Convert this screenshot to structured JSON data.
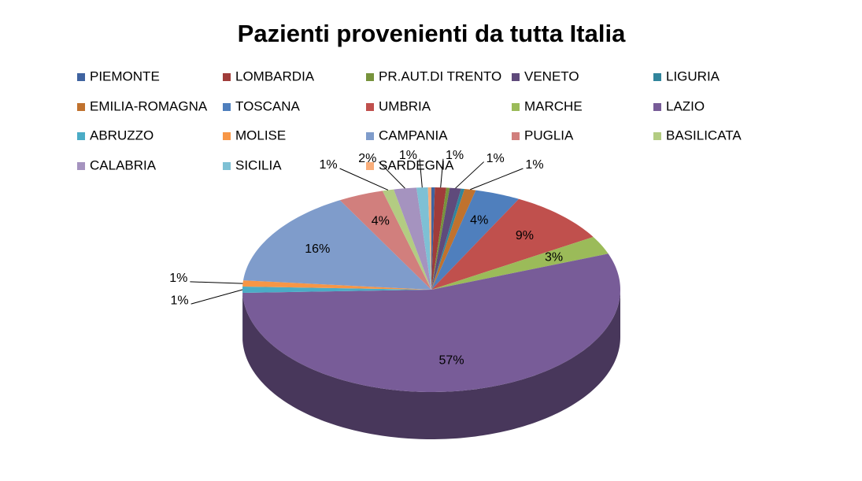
{
  "chart_data": {
    "type": "pie",
    "title": "Pazienti provenienti da tutta Italia",
    "categories": [
      "PIEMONTE",
      "LOMBARDIA",
      "PR.AUT.DI TRENTO",
      "VENETO",
      "LIGURIA",
      "EMILIA-ROMAGNA",
      "TOSCANA",
      "UMBRIA",
      "MARCHE",
      "LAZIO",
      "ABRUZZO",
      "MOLISE",
      "CAMPANIA",
      "PUGLIA",
      "BASILICATA",
      "CALABRIA",
      "SICILIA",
      "SARDEGNA"
    ],
    "values": [
      0.3,
      1,
      0.3,
      1,
      0.3,
      1,
      4,
      9,
      3,
      57,
      1,
      1,
      16,
      4,
      1,
      2,
      1,
      0.3
    ],
    "value_labels": [
      null,
      "1%",
      null,
      "1%",
      null,
      "1%",
      "4%",
      "9%",
      "3%",
      "57%",
      "1%",
      "1%",
      "16%",
      "4%",
      "1%",
      "2%",
      "1%",
      null
    ],
    "colors": [
      "#3f63a0",
      "#a03c3a",
      "#77933c",
      "#5f4a7b",
      "#31859c",
      "#c0722e",
      "#4f7fbd",
      "#c0504d",
      "#9bbb59",
      "#785c98",
      "#4bacc6",
      "#f79646",
      "#7f9ccb",
      "#d17f7d",
      "#b3cc82",
      "#a593bf",
      "#7ec0d4",
      "#f9ae7b"
    ],
    "legend": "top"
  }
}
